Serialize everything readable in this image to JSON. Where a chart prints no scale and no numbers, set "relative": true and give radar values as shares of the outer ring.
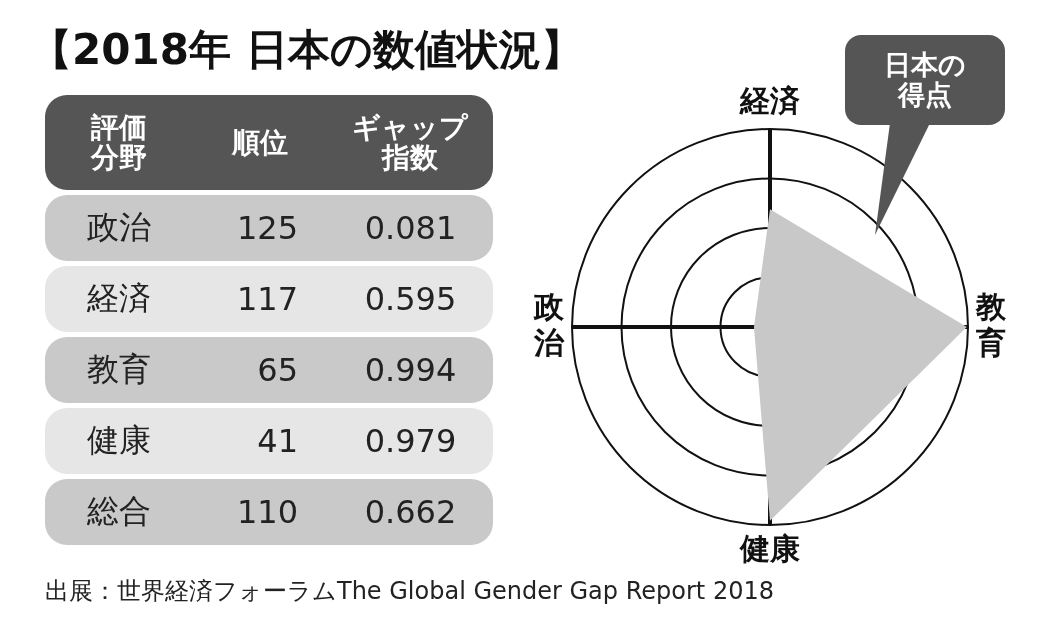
{
  "chart_data": [
    {
      "type": "other",
      "title": "【2018年 日本の数値状況】",
      "annotations": [
        "評価分野",
        "順位",
        "ギャップ指数",
        "政治",
        "125",
        "0.081",
        "経済",
        "117",
        "0.595",
        "教育",
        "65",
        "0.994",
        "健康",
        "41",
        "0.979",
        "総合",
        "110",
        "0.662"
      ]
    },
    {
      "type": "radar",
      "categories": [
        "経済",
        "教育",
        "健康",
        "政治"
      ],
      "relative": true,
      "grid": true,
      "series": [
        {
          "name": "日本の得点",
          "color": "#c8c8c8",
          "values": [
            0.595,
            0.994,
            0.979,
            0.081
          ]
        }
      ],
      "annotations": [
        "出展：世界経済フォーラムThe Global Gender Gap Report 2018"
      ]
    }
  ]
}
